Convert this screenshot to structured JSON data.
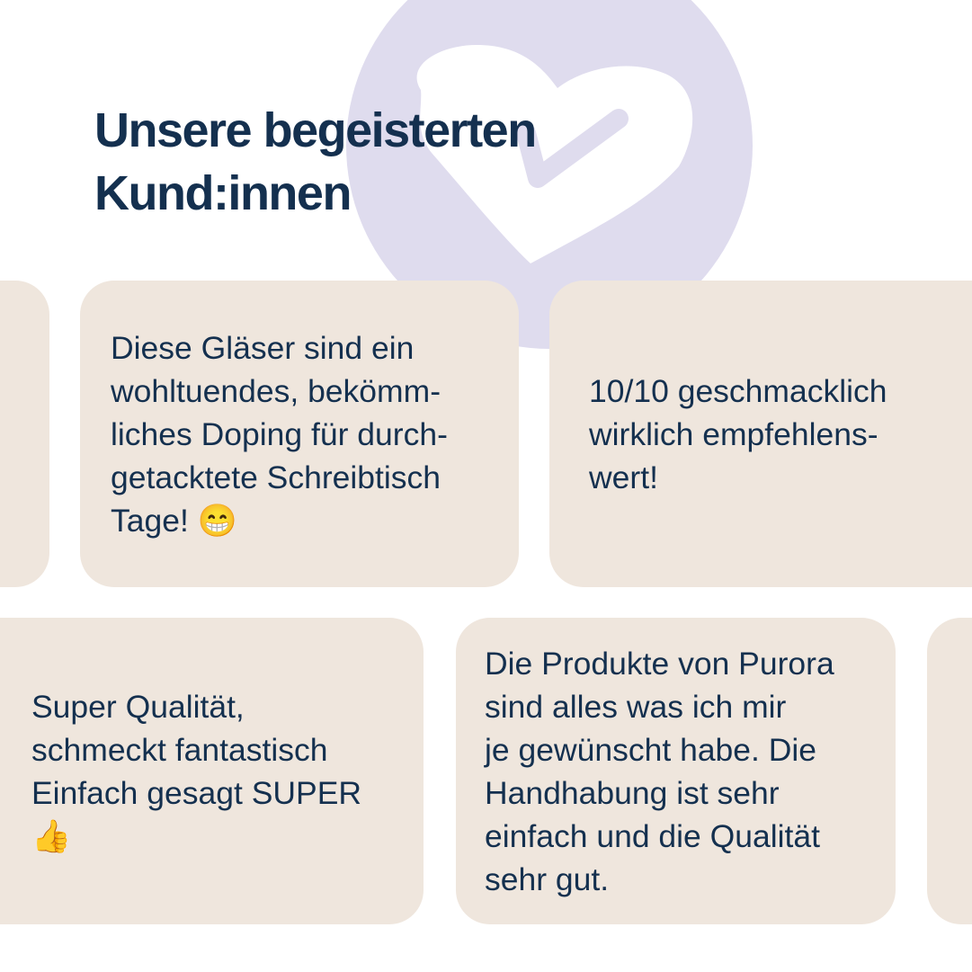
{
  "header": {
    "title_line1": "Unsere begeisterten",
    "title_line2": "Kund:innen"
  },
  "decoration": {
    "icon": "heart-check-icon",
    "circle_color": "#dfdcee"
  },
  "colors": {
    "text": "#14304f",
    "card": "#efe6dd"
  },
  "reviews": [
    {
      "text": "Diese Gläser sind ein\nwohltuendes, bekömm-\nliches Doping für durch-\ngetacktete Schreibtisch\nTage! 😁"
    },
    {
      "text": "10/10 geschmacklich\nwirklich empfehlens-\nwert!"
    },
    {
      "text": "Super Qualität,\nschmeckt fantastisch\nEinfach gesagt SUPER\n👍"
    },
    {
      "text": "Die Produkte von Purora\nsind alles was ich mir\nje gewünscht habe.  Die\nHandhabung ist sehr\neinfach und die Qualität\nsehr gut."
    }
  ]
}
